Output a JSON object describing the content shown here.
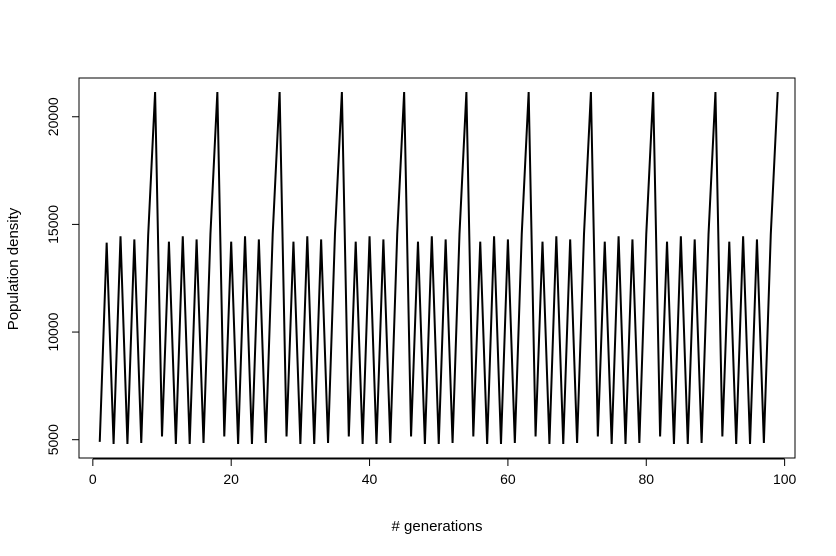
{
  "chart_data": {
    "type": "line",
    "title": "",
    "xlabel": "# generations",
    "ylabel": "Population density",
    "xlim": [
      -2,
      101.5
    ],
    "ylim": [
      4150,
      21800
    ],
    "xticks": [
      0,
      20,
      40,
      60,
      80,
      100
    ],
    "yticks": [
      5000,
      10000,
      15000,
      20000
    ],
    "xtick_labels": [
      "0",
      "20",
      "40",
      "60",
      "80",
      "100"
    ],
    "ytick_labels": [
      "5000",
      "10000",
      "15000",
      "20000"
    ],
    "grid": false,
    "legend": "none",
    "line_color": "#000000",
    "series": [
      {
        "x": [
          1,
          2,
          3,
          4,
          5,
          6,
          7,
          8,
          9,
          10,
          11,
          12,
          13,
          14,
          15,
          16,
          17,
          18,
          19,
          20,
          21,
          22,
          23,
          24,
          25,
          26,
          27,
          28,
          29,
          30,
          31,
          32,
          33,
          34,
          35,
          36,
          37,
          38,
          39,
          40,
          41,
          42,
          43,
          44,
          45,
          46,
          47,
          48,
          49,
          50,
          51,
          52,
          53,
          54,
          55,
          56,
          57,
          58,
          59,
          60,
          61,
          62,
          63,
          64,
          65,
          66,
          67,
          68,
          69,
          70,
          71,
          72,
          73,
          74,
          75,
          76,
          77,
          78,
          79,
          80,
          81,
          82,
          83,
          84,
          85,
          86,
          87,
          88,
          89,
          90,
          91,
          92,
          93,
          94,
          95,
          96,
          97,
          98,
          99
        ],
        "values": [
          4900,
          14150,
          4800,
          14450,
          4800,
          14300,
          4850,
          14500,
          21150,
          5150,
          14200,
          4800,
          14450,
          4800,
          14300,
          4850,
          14550,
          21150,
          5150,
          14200,
          4800,
          14450,
          4800,
          14300,
          4850,
          14550,
          21150,
          5150,
          14200,
          4800,
          14450,
          4800,
          14300,
          4850,
          14550,
          21150,
          5150,
          14200,
          4800,
          14450,
          4800,
          14300,
          4850,
          14550,
          21150,
          5150,
          14200,
          4800,
          14450,
          4800,
          14300,
          4850,
          14550,
          21150,
          5150,
          14200,
          4800,
          14450,
          4800,
          14300,
          4850,
          14550,
          21150,
          5150,
          14200,
          4800,
          14450,
          4800,
          14300,
          4850,
          14550,
          21150,
          5150,
          14200,
          4800,
          14450,
          4800,
          14300,
          4850,
          14550,
          21150,
          5150,
          14200,
          4800,
          14450,
          4800,
          14300,
          4850,
          14550,
          21150,
          5150,
          14200,
          4800,
          14450,
          4800,
          14300,
          4850,
          14550,
          21150
        ]
      }
    ]
  }
}
